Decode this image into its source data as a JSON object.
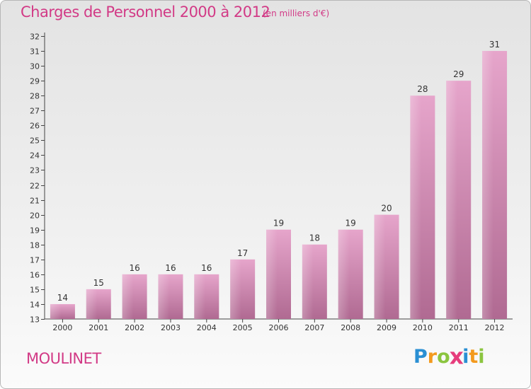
{
  "header": {
    "title": "Charges de Personnel 2000 à 2012",
    "subtitle": "(en milliers d'€)"
  },
  "footer": {
    "place": "MOULINET",
    "logo_letters": [
      "P",
      "r",
      "o",
      "x",
      "i",
      "t",
      "i"
    ],
    "logo_colors": [
      "#2a8fd3",
      "#f39a1e",
      "#8bc53f",
      "#e63c7c",
      "#2a8fd3",
      "#f39a1e",
      "#8bc53f"
    ]
  },
  "colors": {
    "title": "#d23a86",
    "bar_top": "#e6a5cb",
    "bar_bottom": "#b06a92",
    "axis": "#444444"
  },
  "chart_data": {
    "type": "bar",
    "categories": [
      "2000",
      "2001",
      "2002",
      "2003",
      "2004",
      "2005",
      "2006",
      "2007",
      "2008",
      "2009",
      "2010",
      "2011",
      "2012"
    ],
    "values": [
      14,
      15,
      16,
      16,
      16,
      17,
      19,
      18,
      19,
      20,
      28,
      29,
      31
    ],
    "ylim": [
      13,
      32
    ],
    "yticks": [
      13,
      14,
      15,
      16,
      17,
      18,
      19,
      20,
      21,
      22,
      23,
      24,
      25,
      26,
      27,
      28,
      29,
      30,
      31,
      32
    ],
    "data_labels": true,
    "grid": false
  }
}
